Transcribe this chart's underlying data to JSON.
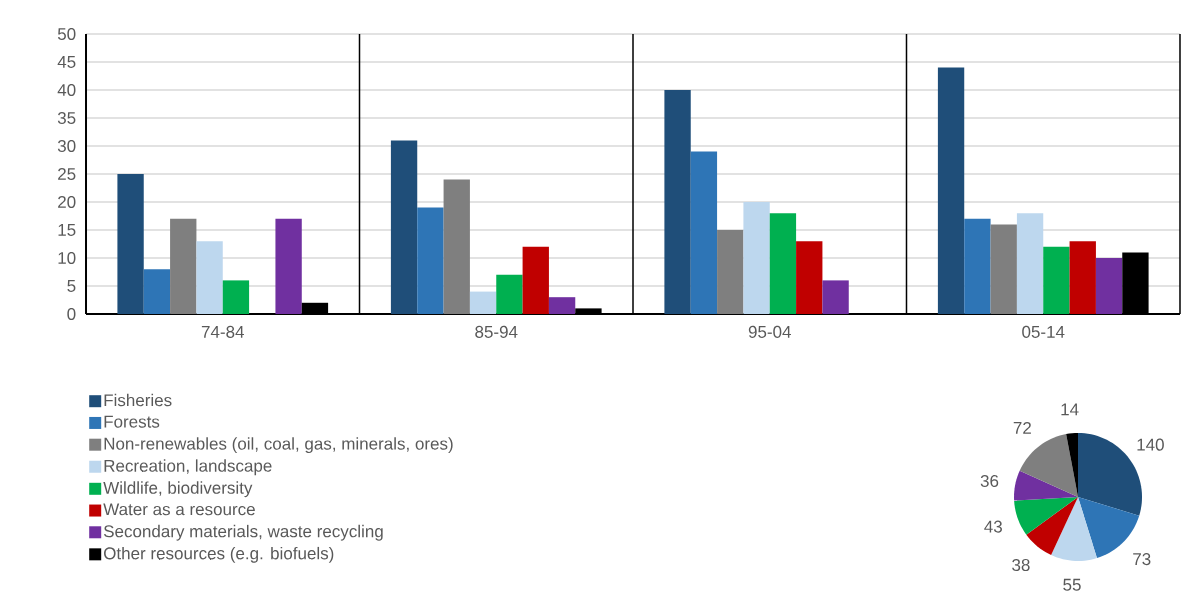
{
  "chart_data": [
    {
      "type": "bar",
      "categories": [
        "74-84",
        "85-94",
        "95-04",
        "05-14"
      ],
      "series": [
        {
          "name": "Fisheries",
          "color": "#1f4e79",
          "values": [
            25,
            31,
            40,
            44
          ]
        },
        {
          "name": "Forests",
          "color": "#2e75b6",
          "values": [
            8,
            19,
            29,
            17
          ]
        },
        {
          "name": "Non-renewables (oil, coal, gas, minerals, ores)",
          "color": "#7f7f7f",
          "values": [
            17,
            24,
            15,
            16
          ]
        },
        {
          "name": "Recreation, landscape",
          "color": "#bdd7ee",
          "values": [
            13,
            4,
            20,
            18
          ]
        },
        {
          "name": "Wildlife, biodiversity",
          "color": "#00b050",
          "values": [
            6,
            7,
            18,
            12
          ]
        },
        {
          "name": "Water as a resource",
          "color": "#c00000",
          "values": [
            0,
            12,
            13,
            13
          ]
        },
        {
          "name": "Secondary materials, waste recycling",
          "color": "#7030a0",
          "values": [
            17,
            3,
            6,
            10
          ]
        },
        {
          "name": "Other resources (e.g. biofuels)",
          "color": "#000000",
          "values": [
            2,
            1,
            0,
            11
          ]
        }
      ],
      "ylim": [
        0,
        50
      ],
      "yticks": [
        0,
        5,
        10,
        15,
        20,
        25,
        30,
        35,
        40,
        45,
        50
      ],
      "grid": true,
      "legend": "bottom"
    },
    {
      "type": "pie",
      "categories": [
        null,
        null,
        null,
        null,
        null,
        null,
        null,
        null
      ],
      "values": [
        140,
        73,
        55,
        38,
        43,
        36,
        72,
        14
      ],
      "colors": [
        "#1f4e79",
        "#2e75b6",
        "#bdd7ee",
        "#c00000",
        "#00b050",
        "#7030a0",
        "#7f7f7f",
        "#000000"
      ],
      "data_labels": true
    }
  ]
}
